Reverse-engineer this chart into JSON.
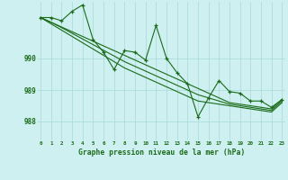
{
  "background_color": "#cff0f0",
  "grid_color": "#a8d8d8",
  "line_color": "#1a6b1a",
  "title": "Graphe pression niveau de la mer (hPa)",
  "ylabel_ticks": [
    988,
    989,
    990
  ],
  "xticks": [
    0,
    1,
    2,
    3,
    4,
    5,
    6,
    7,
    8,
    9,
    10,
    11,
    12,
    13,
    14,
    15,
    16,
    17,
    18,
    19,
    20,
    21,
    22,
    23
  ],
  "xlim": [
    -0.3,
    23.3
  ],
  "ylim": [
    987.4,
    991.8
  ],
  "series_main": [
    991.3,
    991.3,
    991.2,
    991.5,
    991.7,
    990.6,
    990.2,
    989.65,
    990.25,
    990.2,
    989.95,
    991.05,
    990.0,
    989.55,
    989.2,
    988.15,
    988.75,
    989.3,
    988.95,
    988.9,
    988.65,
    988.65,
    988.45,
    988.7
  ],
  "series_lin1": [
    991.3,
    991.15,
    991.0,
    990.85,
    990.7,
    990.55,
    990.4,
    990.25,
    990.1,
    989.95,
    989.8,
    989.65,
    989.5,
    989.35,
    989.2,
    989.05,
    988.9,
    988.75,
    988.6,
    988.55,
    988.5,
    988.45,
    988.4,
    988.7
  ],
  "series_lin2": [
    991.3,
    991.15,
    990.98,
    990.8,
    990.62,
    990.44,
    990.26,
    990.08,
    989.9,
    989.75,
    989.6,
    989.45,
    989.3,
    989.15,
    989.0,
    988.85,
    988.75,
    988.65,
    988.55,
    988.5,
    988.45,
    988.4,
    988.35,
    988.65
  ],
  "series_lin3": [
    991.3,
    991.1,
    990.9,
    990.7,
    990.5,
    990.3,
    990.1,
    989.9,
    989.7,
    989.55,
    989.4,
    989.25,
    989.1,
    988.95,
    988.8,
    988.65,
    988.6,
    988.55,
    988.5,
    988.45,
    988.4,
    988.35,
    988.3,
    988.6
  ]
}
